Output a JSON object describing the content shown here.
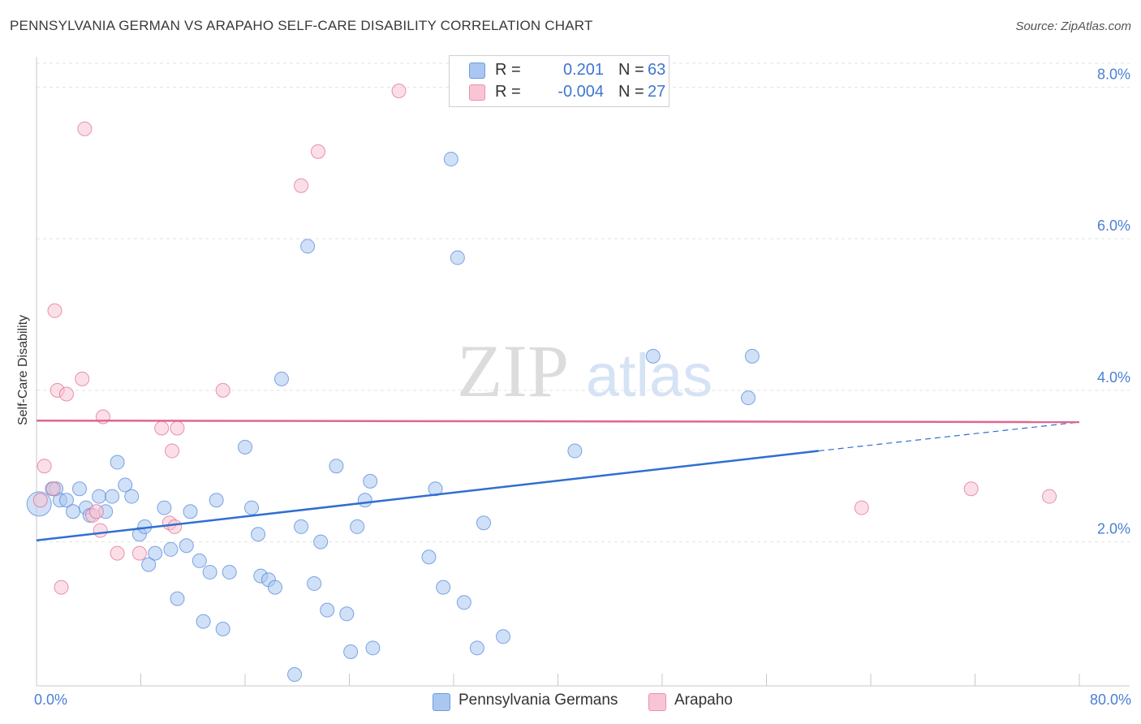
{
  "title": "PENNSYLVANIA GERMAN VS ARAPAHO SELF-CARE DISABILITY CORRELATION CHART",
  "source": "Source: ZipAtlas.com",
  "watermark": {
    "zip": "ZIP",
    "atlas": "atlas"
  },
  "legend_top": {
    "rows": [
      {
        "r_label": "R =",
        "r_value": "0.201",
        "n_label": "N =",
        "n_value": "63",
        "color": "#a9c7f1",
        "stroke": "#6b9de0"
      },
      {
        "r_label": "R =",
        "r_value": "-0.004",
        "n_label": "N =",
        "n_value": "27",
        "color": "#f8c5d4",
        "stroke": "#ec8fab"
      }
    ]
  },
  "legend_bottom": {
    "items": [
      {
        "label": "Pennsylvania Germans",
        "color": "#a9c7f1",
        "stroke": "#6b9de0"
      },
      {
        "label": "Arapaho",
        "color": "#f8c5d4",
        "stroke": "#ec8fab"
      }
    ]
  },
  "chart_data": {
    "type": "scatter",
    "title": "PENNSYLVANIA GERMAN VS ARAPAHO SELF-CARE DISABILITY CORRELATION CHART",
    "ylabel": "Self-Care Disability",
    "xlabel": "",
    "x_tick_labels": {
      "left": "0.0%",
      "right": "80.0%"
    },
    "y_tick_labels": [
      "2.0%",
      "4.0%",
      "6.0%",
      "8.0%"
    ],
    "y_ticks": [
      2,
      4,
      6,
      8
    ],
    "xlim": [
      0,
      80
    ],
    "ylim": [
      0.1,
      8.4
    ],
    "grid": true,
    "series": [
      {
        "name": "Pennsylvania Germans",
        "color": "#4a83d8",
        "fill": "#a9c7f1",
        "points": [
          [
            0.2,
            2.5
          ],
          [
            1.2,
            2.7
          ],
          [
            1.5,
            2.7
          ],
          [
            1.8,
            2.55
          ],
          [
            2.3,
            2.55
          ],
          [
            2.8,
            2.4
          ],
          [
            3.3,
            2.7
          ],
          [
            3.8,
            2.45
          ],
          [
            4.1,
            2.35
          ],
          [
            4.8,
            2.6
          ],
          [
            5.3,
            2.4
          ],
          [
            5.8,
            2.6
          ],
          [
            6.2,
            3.05
          ],
          [
            6.8,
            2.75
          ],
          [
            7.3,
            2.6
          ],
          [
            7.9,
            2.1
          ],
          [
            8.3,
            2.2
          ],
          [
            8.6,
            1.7
          ],
          [
            9.1,
            1.85
          ],
          [
            9.8,
            2.45
          ],
          [
            10.3,
            1.9
          ],
          [
            10.8,
            1.25
          ],
          [
            11.5,
            1.95
          ],
          [
            11.8,
            2.4
          ],
          [
            12.5,
            1.75
          ],
          [
            12.8,
            0.95
          ],
          [
            13.3,
            1.6
          ],
          [
            13.8,
            2.55
          ],
          [
            14.3,
            0.85
          ],
          [
            14.8,
            1.6
          ],
          [
            16.0,
            3.25
          ],
          [
            16.5,
            2.45
          ],
          [
            17.0,
            2.1
          ],
          [
            17.2,
            1.55
          ],
          [
            17.8,
            1.5
          ],
          [
            18.3,
            1.4
          ],
          [
            18.8,
            4.15
          ],
          [
            19.8,
            0.25
          ],
          [
            20.3,
            2.2
          ],
          [
            20.8,
            5.9
          ],
          [
            21.3,
            1.45
          ],
          [
            21.8,
            2.0
          ],
          [
            22.3,
            1.1
          ],
          [
            23.0,
            3.0
          ],
          [
            23.8,
            1.05
          ],
          [
            24.1,
            0.55
          ],
          [
            24.6,
            2.2
          ],
          [
            25.2,
            2.55
          ],
          [
            25.6,
            2.8
          ],
          [
            25.8,
            0.6
          ],
          [
            30.1,
            1.8
          ],
          [
            30.6,
            2.7
          ],
          [
            31.2,
            1.4
          ],
          [
            31.8,
            7.05
          ],
          [
            32.3,
            5.75
          ],
          [
            32.8,
            1.2
          ],
          [
            33.8,
            0.6
          ],
          [
            34.3,
            2.25
          ],
          [
            35.8,
            0.75
          ],
          [
            41.3,
            3.2
          ],
          [
            47.3,
            4.45
          ],
          [
            54.6,
            3.9
          ],
          [
            54.9,
            4.45
          ]
        ]
      },
      {
        "name": "Arapaho",
        "color": "#e0668f",
        "fill": "#f8c5d4",
        "points": [
          [
            0.3,
            2.55
          ],
          [
            0.6,
            3.0
          ],
          [
            1.3,
            2.7
          ],
          [
            1.4,
            5.05
          ],
          [
            1.6,
            4.0
          ],
          [
            1.9,
            1.4
          ],
          [
            2.3,
            3.95
          ],
          [
            3.5,
            4.15
          ],
          [
            3.7,
            7.45
          ],
          [
            4.3,
            2.35
          ],
          [
            4.6,
            2.4
          ],
          [
            4.9,
            2.15
          ],
          [
            5.1,
            3.65
          ],
          [
            6.2,
            1.85
          ],
          [
            7.9,
            1.85
          ],
          [
            9.6,
            3.5
          ],
          [
            10.2,
            2.25
          ],
          [
            10.4,
            3.2
          ],
          [
            10.6,
            2.2
          ],
          [
            10.8,
            3.5
          ],
          [
            14.3,
            4.0
          ],
          [
            20.3,
            6.7
          ],
          [
            21.6,
            7.15
          ],
          [
            27.8,
            7.95
          ],
          [
            63.3,
            2.45
          ],
          [
            71.7,
            2.7
          ],
          [
            77.7,
            2.6
          ]
        ]
      }
    ],
    "trendlines": [
      {
        "series": "Pennsylvania Germans",
        "x_start": 0,
        "y_start": 2.02,
        "x_solid_end": 60,
        "y_solid_end": 3.2,
        "x_end": 80,
        "y_end": 3.58,
        "style": "solid then dashed"
      },
      {
        "series": "Arapaho",
        "x_start": 0,
        "y_start": 3.6,
        "x_end": 80,
        "y_end": 3.58,
        "style": "solid"
      }
    ],
    "legend_position": "top-center"
  }
}
